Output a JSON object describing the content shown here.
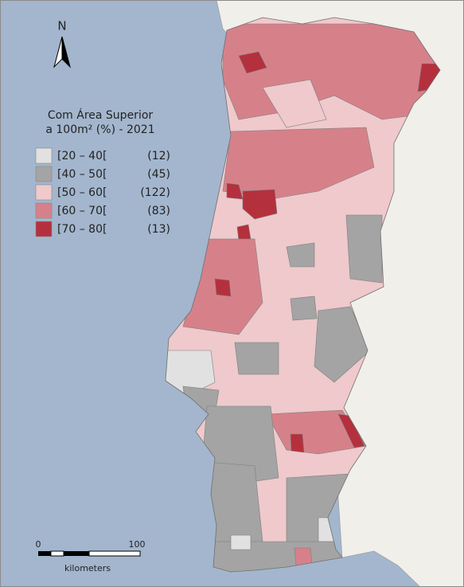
{
  "map": {
    "north_label": "N",
    "legend": {
      "title_lines": [
        "Com Área Superior",
        "a 100m² (%) - 2021"
      ],
      "items": [
        {
          "range": "[20 – 40[",
          "count": "(12)",
          "color": "#e1e1e1"
        },
        {
          "range": "[40 – 50[",
          "count": "(45)",
          "color": "#a4a4a4"
        },
        {
          "range": "[50 – 60[",
          "count": "(122)",
          "color": "#efc9cc"
        },
        {
          "range": "[60 – 70[",
          "count": "(83)",
          "color": "#d6818a"
        },
        {
          "range": "[70 – 80[",
          "count": "(13)",
          "color": "#b5303d"
        }
      ]
    },
    "scale_bar": {
      "start_label": "0",
      "end_label": "100",
      "unit": "kilometers"
    }
  }
}
